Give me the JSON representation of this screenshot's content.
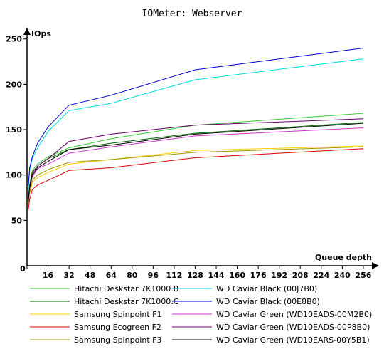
{
  "chart_data": {
    "type": "line",
    "title": "IOMeter: Webserver",
    "ylabel": "IOps",
    "xlabel": "Queue depth",
    "x": [
      1,
      2,
      4,
      8,
      16,
      32,
      64,
      128,
      256
    ],
    "x_ticks": [
      0,
      16,
      32,
      48,
      64,
      80,
      96,
      112,
      128,
      144,
      160,
      176,
      192,
      208,
      224,
      240,
      256
    ],
    "y_ticks": [
      50,
      100,
      150,
      200,
      250
    ],
    "xlim": [
      0,
      262
    ],
    "ylim": [
      0,
      260
    ],
    "grid": false,
    "legend_position": "bottom",
    "series": [
      {
        "name": "Hitachi Deskstar 7K1000.B",
        "color": "#33cc33",
        "values": [
          75,
          90,
          105,
          112,
          120,
          130,
          140,
          155,
          168
        ]
      },
      {
        "name": "Hitachi Deskstar 7K1000.C",
        "color": "#006600",
        "values": [
          73,
          88,
          103,
          110,
          118,
          128,
          135,
          146,
          158
        ]
      },
      {
        "name": "Samsung Spinpoint F1",
        "color": "#ffcc00",
        "values": [
          67,
          80,
          92,
          97,
          103,
          112,
          117,
          127,
          132
        ]
      },
      {
        "name": "Samsung Ecogreen F2",
        "color": "#dd0000",
        "values": [
          62,
          73,
          84,
          89,
          94,
          105,
          108,
          119,
          129
        ]
      },
      {
        "name": "Samsung Spinpoint F3",
        "color": "#999900",
        "values": [
          68,
          81,
          94,
          100,
          106,
          114,
          117,
          125,
          131
        ]
      },
      {
        "name": "WD Caviar Black (00J7B0)",
        "color": "#00dddd",
        "values": [
          85,
          105,
          118,
          130,
          148,
          171,
          179,
          205,
          228
        ]
      },
      {
        "name": "WD Caviar Black (00E8B0)",
        "color": "#0000cc",
        "values": [
          88,
          108,
          120,
          135,
          153,
          177,
          188,
          216,
          240
        ]
      },
      {
        "name": "WD Caviar Green (WD10EADS-00M2B0)",
        "color": "#cc33cc",
        "values": [
          70,
          85,
          98,
          107,
          112,
          124,
          131,
          143,
          152
        ]
      },
      {
        "name": "WD Caviar Green (WD10EADS-00P8B0)",
        "color": "#660066",
        "values": [
          72,
          88,
          102,
          110,
          118,
          137,
          145,
          155,
          162
        ]
      },
      {
        "name": "WD Caviar Green (WD10EARS-00Y5B1)",
        "color": "#000000",
        "values": [
          71,
          86,
          100,
          108,
          115,
          128,
          133,
          145,
          157
        ]
      }
    ]
  }
}
